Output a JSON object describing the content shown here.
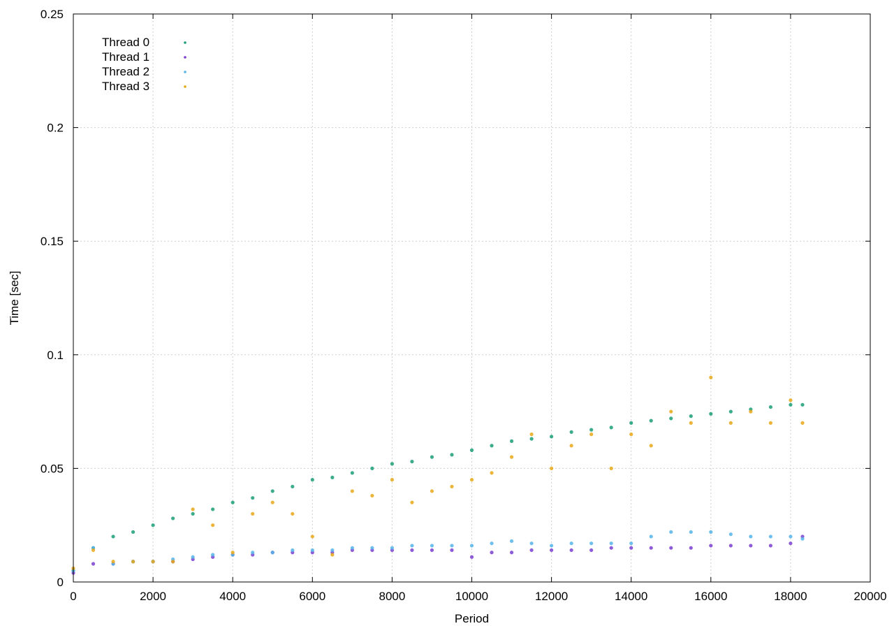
{
  "chart_data": {
    "type": "scatter",
    "title": "",
    "xlabel": "Period",
    "ylabel": "Time [sec]",
    "xlim": [
      0,
      20000
    ],
    "ylim": [
      0,
      0.25
    ],
    "x_ticks": [
      "0",
      "2000",
      "4000",
      "6000",
      "8000",
      "10000",
      "12000",
      "14000",
      "16000",
      "18000",
      "20000"
    ],
    "y_ticks": [
      "0",
      "0.05",
      "0.1",
      "0.15",
      "0.2",
      "0.25"
    ],
    "grid": true,
    "legend_position": "top-left",
    "series": [
      {
        "name": "Thread 0",
        "color": "#1a9e77",
        "x": [
          0,
          500,
          1000,
          1500,
          2000,
          2500,
          3000,
          3500,
          4000,
          4500,
          5000,
          5500,
          6000,
          6500,
          7000,
          7500,
          8000,
          8500,
          9000,
          9500,
          10000,
          10500,
          11000,
          11500,
          12000,
          12500,
          13000,
          13500,
          14000,
          14500,
          15000,
          15500,
          16000,
          16500,
          17000,
          17500,
          18000,
          18300
        ],
        "y": [
          0.005,
          0.015,
          0.02,
          0.022,
          0.025,
          0.028,
          0.03,
          0.032,
          0.035,
          0.037,
          0.04,
          0.042,
          0.045,
          0.046,
          0.048,
          0.05,
          0.052,
          0.053,
          0.055,
          0.056,
          0.058,
          0.06,
          0.062,
          0.063,
          0.064,
          0.066,
          0.067,
          0.068,
          0.07,
          0.071,
          0.072,
          0.073,
          0.074,
          0.075,
          0.076,
          0.077,
          0.078,
          0.078
        ]
      },
      {
        "name": "Thread 1",
        "color": "#7b3fd1",
        "x": [
          0,
          500,
          1000,
          1500,
          2000,
          2500,
          3000,
          3500,
          4000,
          4500,
          5000,
          5500,
          6000,
          6500,
          7000,
          7500,
          8000,
          8500,
          9000,
          9500,
          10000,
          10500,
          11000,
          11500,
          12000,
          12500,
          13000,
          13500,
          14000,
          14500,
          15000,
          15500,
          16000,
          16500,
          17000,
          17500,
          18000,
          18300
        ],
        "y": [
          0.004,
          0.008,
          0.008,
          0.009,
          0.009,
          0.009,
          0.01,
          0.011,
          0.012,
          0.012,
          0.013,
          0.013,
          0.013,
          0.013,
          0.014,
          0.014,
          0.014,
          0.014,
          0.014,
          0.014,
          0.011,
          0.013,
          0.013,
          0.014,
          0.014,
          0.014,
          0.014,
          0.015,
          0.015,
          0.015,
          0.015,
          0.015,
          0.016,
          0.016,
          0.016,
          0.016,
          0.017,
          0.02
        ]
      },
      {
        "name": "Thread 2",
        "color": "#56b4e9",
        "x": [
          0,
          500,
          1000,
          1500,
          2000,
          2500,
          3000,
          3500,
          4000,
          4500,
          5000,
          5500,
          6000,
          6500,
          7000,
          7500,
          8000,
          8500,
          9000,
          9500,
          10000,
          10500,
          11000,
          11500,
          12000,
          12500,
          13000,
          13500,
          14000,
          14500,
          15000,
          15500,
          16000,
          16500,
          17000,
          17500,
          18000,
          18300
        ],
        "y": [
          0.005,
          0.015,
          0.008,
          0.009,
          0.009,
          0.01,
          0.011,
          0.012,
          0.012,
          0.013,
          0.013,
          0.014,
          0.014,
          0.014,
          0.015,
          0.015,
          0.015,
          0.016,
          0.016,
          0.016,
          0.016,
          0.017,
          0.018,
          0.017,
          0.016,
          0.017,
          0.017,
          0.017,
          0.017,
          0.02,
          0.022,
          0.022,
          0.022,
          0.021,
          0.02,
          0.02,
          0.02,
          0.019
        ]
      },
      {
        "name": "Thread 3",
        "color": "#e6a817",
        "x": [
          0,
          500,
          1000,
          1500,
          2000,
          2500,
          3000,
          3500,
          4000,
          4500,
          5000,
          5500,
          6000,
          6500,
          7000,
          7500,
          8000,
          8500,
          9000,
          9500,
          10000,
          10500,
          11000,
          11500,
          12000,
          12500,
          13000,
          13500,
          14000,
          14500,
          15000,
          15500,
          16000,
          16500,
          17000,
          17500,
          18000,
          18300
        ],
        "y": [
          0.006,
          0.014,
          0.009,
          0.009,
          0.009,
          0.009,
          0.032,
          0.025,
          0.013,
          0.03,
          0.035,
          0.03,
          0.02,
          0.012,
          0.04,
          0.038,
          0.045,
          0.035,
          0.04,
          0.042,
          0.045,
          0.048,
          0.055,
          0.065,
          0.05,
          0.06,
          0.065,
          0.05,
          0.065,
          0.06,
          0.075,
          0.07,
          0.09,
          0.07,
          0.075,
          0.07,
          0.08,
          0.07
        ]
      }
    ]
  }
}
